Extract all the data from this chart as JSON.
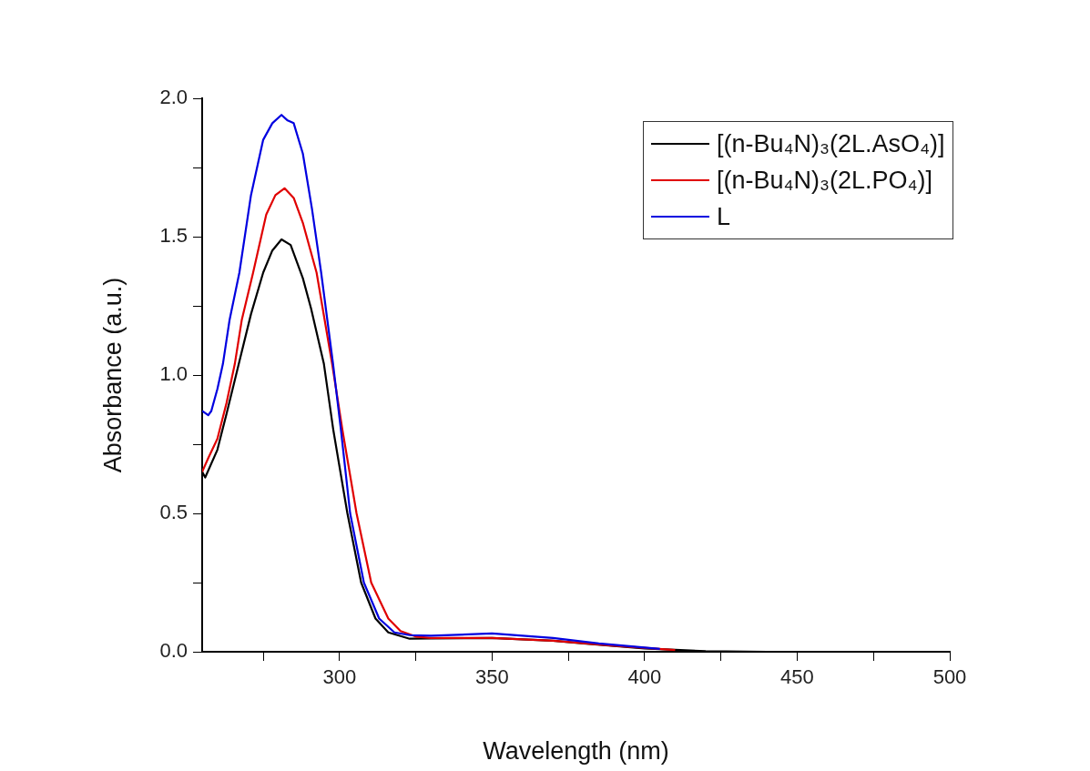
{
  "chart_data": {
    "type": "line",
    "xlabel": "Wavelength (nm)",
    "ylabel": "Absorbance (a.u.)",
    "xlim": [
      255,
      500
    ],
    "ylim": [
      0,
      2
    ],
    "xticks": [
      {
        "value": 275,
        "label": null
      },
      300,
      {
        "value": 325,
        "label": null
      },
      350,
      {
        "value": 375,
        "label": null
      },
      400,
      {
        "value": 425,
        "label": null
      },
      450,
      {
        "value": 475,
        "label": null
      },
      500
    ],
    "yticks": [
      {
        "value": 0,
        "label": "0.0"
      },
      {
        "value": 0.25,
        "label": null
      },
      {
        "value": 0.5,
        "label": "0.5"
      },
      {
        "value": 0.75,
        "label": null
      },
      {
        "value": 1,
        "label": "1.0"
      },
      {
        "value": 1.25,
        "label": null
      },
      {
        "value": 1.5,
        "label": "1.5"
      },
      {
        "value": 1.75,
        "label": null
      },
      {
        "value": 2,
        "label": "2.0"
      }
    ],
    "grid": false,
    "legend": "top right",
    "marker": "none",
    "line_style": "solid",
    "series": [
      {
        "name": "[(n-Bu₄N)₃(2L.AsO₄)]",
        "color": "#000000",
        "x": [
          255,
          256,
          260,
          263,
          267,
          271,
          275,
          278,
          281,
          284,
          288,
          290.7,
          294.9,
          298,
          302.6,
          307.1,
          311.8,
          316,
          323,
          330,
          350,
          370,
          380,
          400,
          420,
          440,
          500
        ],
        "values": [
          0.65,
          0.63,
          0.73,
          0.86,
          1.04,
          1.22,
          1.37,
          1.45,
          1.49,
          1.47,
          1.35,
          1.24,
          1.04,
          0.8,
          0.5,
          0.25,
          0.12,
          0.07,
          0.047,
          0.048,
          0.05,
          0.04,
          0.03,
          0.012,
          0.002,
          0,
          0
        ]
      },
      {
        "name": "[(n-Bu₄N)₃(2L.PO₄)]",
        "color": "#e00000",
        "x": [
          255,
          257,
          260,
          263,
          265.7,
          268,
          271.7,
          276,
          279,
          282,
          285,
          288,
          292.5,
          297.6,
          301,
          305.6,
          310.4,
          316,
          320,
          325,
          330,
          350,
          370,
          390,
          410
        ],
        "values": [
          0.65,
          0.7,
          0.77,
          0.9,
          1.04,
          1.2,
          1.37,
          1.58,
          1.65,
          1.675,
          1.64,
          1.55,
          1.37,
          1.04,
          0.8,
          0.5,
          0.25,
          0.12,
          0.075,
          0.055,
          0.05,
          0.05,
          0.04,
          0.022,
          0.006
        ]
      },
      {
        "name": "L",
        "color": "#0000e0",
        "x": [
          255,
          257,
          258,
          260,
          261.8,
          264,
          267.2,
          271,
          275,
          278,
          281,
          283,
          285,
          288,
          291,
          294,
          297.9,
          300.5,
          303.5,
          308,
          313,
          318,
          323,
          330,
          350,
          370,
          385,
          405
        ],
        "values": [
          0.87,
          0.855,
          0.87,
          0.95,
          1.04,
          1.2,
          1.37,
          1.65,
          1.85,
          1.91,
          1.94,
          1.92,
          1.91,
          1.8,
          1.6,
          1.37,
          1.04,
          0.8,
          0.5,
          0.25,
          0.12,
          0.07,
          0.06,
          0.058,
          0.066,
          0.05,
          0.03,
          0.01
        ]
      }
    ]
  }
}
